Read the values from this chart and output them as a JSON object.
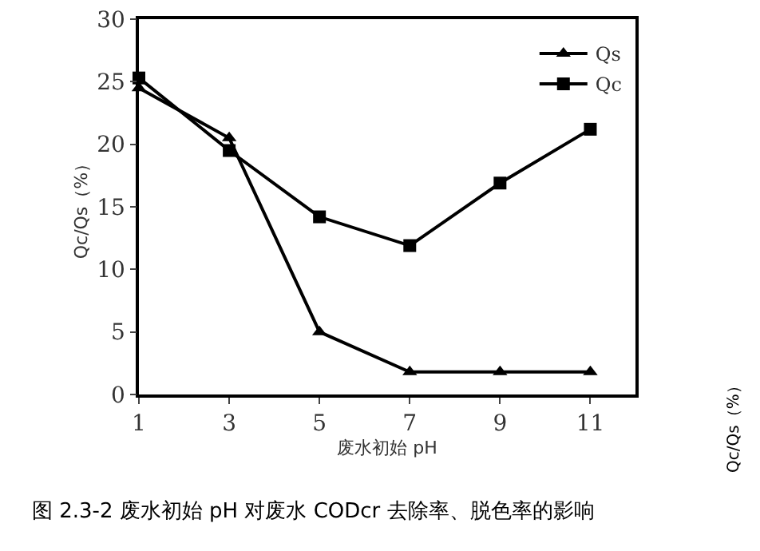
{
  "chart_data": {
    "type": "line",
    "xlabel": "废水初始 pH",
    "ylabel": "Qc/Qs（%）",
    "x": [
      1,
      3,
      5,
      7,
      9,
      11
    ],
    "series": [
      {
        "name": "Qs",
        "color": "#000000",
        "marker": "triangle",
        "values": [
          24.5,
          20.5,
          5,
          1.8,
          1.8,
          1.8
        ]
      },
      {
        "name": "Qc",
        "color": "#000000",
        "marker": "square",
        "values": [
          25.3,
          19.5,
          14.2,
          11.9,
          16.9,
          21.2
        ]
      }
    ],
    "xlim": [
      1,
      12
    ],
    "xticks": [
      1,
      3,
      5,
      7,
      9,
      11
    ],
    "ylim": [
      0,
      30
    ],
    "yticks": [
      0,
      5,
      10,
      15,
      20,
      25,
      30
    ],
    "grid": false,
    "legend": "top right",
    "line_style": "solid",
    "annotations": [
      "图 2.3-2 废水初始 pH 对废水 CODcr 去除率、脱色率的影响",
      "Qc/Qs（%）"
    ]
  }
}
